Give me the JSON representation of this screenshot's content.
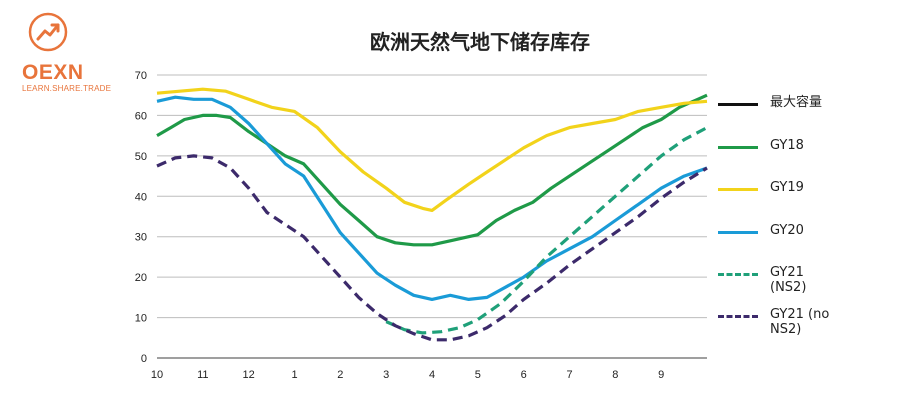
{
  "logo": {
    "text": "OEXN",
    "tagline": "LEARN.SHARE.TRADE",
    "icon": "growth-arrow-icon",
    "color": "#e8743b"
  },
  "chart_data": {
    "type": "line",
    "title": "欧洲天然气地下储存库存",
    "xlabel": "",
    "ylabel": "",
    "xlim": [
      0,
      12
    ],
    "ylim": [
      0,
      70
    ],
    "yticks": [
      0,
      10,
      20,
      30,
      40,
      50,
      60,
      70
    ],
    "xticks": [
      {
        "x": 0,
        "label": "10"
      },
      {
        "x": 1,
        "label": "11"
      },
      {
        "x": 2,
        "label": "12"
      },
      {
        "x": 3,
        "label": "1"
      },
      {
        "x": 4,
        "label": "2"
      },
      {
        "x": 5,
        "label": "3"
      },
      {
        "x": 6,
        "label": "4"
      },
      {
        "x": 7,
        "label": "5"
      },
      {
        "x": 8,
        "label": "6"
      },
      {
        "x": 9,
        "label": "7"
      },
      {
        "x": 10,
        "label": "8"
      },
      {
        "x": 11,
        "label": "9"
      }
    ],
    "grid": true,
    "legend_position": "right",
    "series": [
      {
        "name": "最大容量",
        "color": "#111111",
        "dash": "solid",
        "x": [],
        "y": []
      },
      {
        "name": "GY18",
        "color": "#1f9a48",
        "dash": "solid",
        "x": [
          0,
          0.3,
          0.6,
          1.0,
          1.3,
          1.6,
          2.0,
          2.4,
          2.8,
          3.2,
          3.6,
          4.0,
          4.4,
          4.8,
          5.2,
          5.6,
          6.0,
          6.4,
          6.8,
          7.0,
          7.4,
          7.8,
          8.2,
          8.6,
          9.0,
          9.4,
          9.8,
          10.2,
          10.6,
          11.0,
          11.4,
          11.8,
          12.0
        ],
        "y": [
          55,
          57,
          59,
          60,
          60,
          59.5,
          56,
          53,
          50,
          48,
          43,
          38,
          34,
          30,
          28.5,
          28,
          28,
          29,
          30,
          30.5,
          34,
          36.5,
          38.5,
          42,
          45,
          48,
          51,
          54,
          57,
          59,
          62,
          64,
          65
        ]
      },
      {
        "name": "GY19",
        "color": "#f2d31b",
        "dash": "solid",
        "x": [
          0,
          0.5,
          1.0,
          1.5,
          2.0,
          2.5,
          3.0,
          3.5,
          4.0,
          4.5,
          5.0,
          5.4,
          5.8,
          6.0,
          6.3,
          6.8,
          7.2,
          7.6,
          8.0,
          8.5,
          9.0,
          9.5,
          10.0,
          10.5,
          11.0,
          11.5,
          12.0
        ],
        "y": [
          65.5,
          66,
          66.5,
          66,
          64,
          62,
          61,
          57,
          51,
          46,
          42,
          38.5,
          37,
          36.5,
          39,
          43,
          46,
          49,
          52,
          55,
          57,
          58,
          59,
          61,
          62,
          63,
          63.5
        ]
      },
      {
        "name": "GY20",
        "color": "#1a9bd7",
        "dash": "solid",
        "x": [
          0,
          0.4,
          0.8,
          1.2,
          1.6,
          2.0,
          2.4,
          2.8,
          3.2,
          3.6,
          4.0,
          4.4,
          4.8,
          5.2,
          5.6,
          6.0,
          6.4,
          6.8,
          7.2,
          7.6,
          8.0,
          8.5,
          9.0,
          9.5,
          10.0,
          10.5,
          11.0,
          11.5,
          12.0
        ],
        "y": [
          63.5,
          64.5,
          64,
          64,
          62,
          58,
          53,
          48,
          45,
          38,
          31,
          26,
          21,
          18,
          15.5,
          14.5,
          15.5,
          14.5,
          15,
          17.5,
          20,
          24,
          27,
          30,
          34,
          38,
          42,
          45,
          47
        ]
      },
      {
        "name": "GY21 (NS2)",
        "color": "#1fa079",
        "dash": "dashed",
        "x": [
          5.0,
          5.4,
          5.8,
          6.2,
          6.6,
          7.0,
          7.5,
          8.0,
          8.5,
          9.0,
          9.5,
          10.0,
          10.5,
          11.0,
          11.5,
          12.0
        ],
        "y": [
          9,
          7,
          6.2,
          6.5,
          7.5,
          9.5,
          13.5,
          19,
          25,
          30,
          35,
          40,
          45,
          50,
          54,
          57
        ]
      },
      {
        "name": "GY21 (no NS2)",
        "color": "#3c2a6b",
        "dash": "dashed",
        "x": [
          0,
          0.4,
          0.8,
          1.2,
          1.6,
          2.0,
          2.4,
          2.8,
          3.2,
          3.6,
          4.0,
          4.4,
          4.8,
          5.2,
          5.6,
          6.0,
          6.4,
          6.8,
          7.2,
          7.6,
          8.0,
          8.5,
          9.0,
          9.5,
          10.0,
          10.5,
          11.0,
          11.5,
          12.0
        ],
        "y": [
          47.5,
          49.5,
          50,
          49.5,
          47,
          42,
          36,
          33,
          30,
          25,
          20,
          15,
          11,
          8,
          6,
          4.5,
          4.5,
          5.5,
          7.5,
          10.5,
          14.5,
          18.5,
          23,
          27,
          31,
          35,
          39.5,
          43.5,
          47
        ]
      }
    ]
  }
}
